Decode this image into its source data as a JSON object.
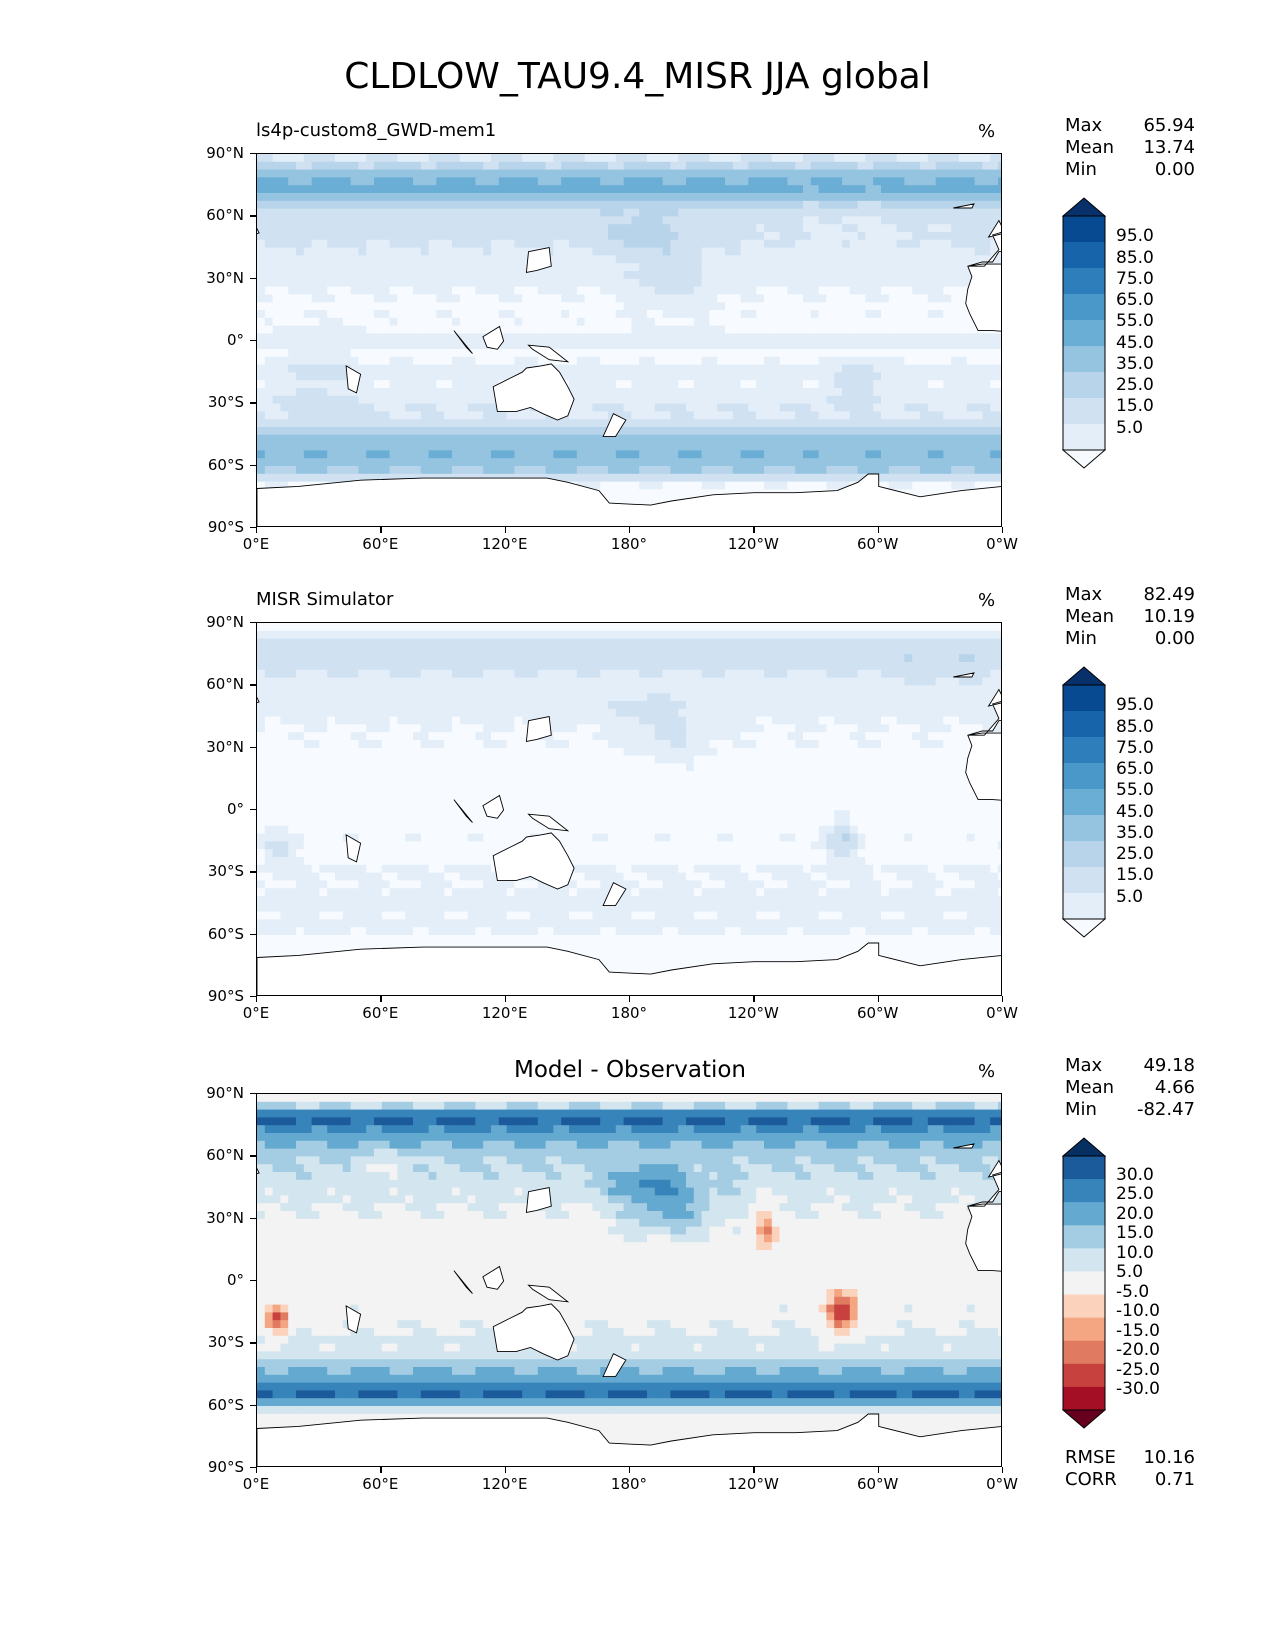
{
  "figure_title": "CLDLOW_TAU9.4_MISR JJA global",
  "chart_data": [
    {
      "type": "heatmap",
      "title": "ls4p-custom8_GWD-mem1",
      "units": "%",
      "stats": [
        {
          "label": "Max",
          "value": "65.94"
        },
        {
          "label": "Mean",
          "value": "13.74"
        },
        {
          "label": "Min",
          "value": "0.00"
        }
      ],
      "x_ticks": [
        "0°E",
        "60°E",
        "120°E",
        "180°",
        "120°W",
        "60°W",
        "0°W"
      ],
      "y_ticks": [
        "90°N",
        "60°N",
        "30°N",
        "0°",
        "30°S",
        "60°S",
        "90°S"
      ],
      "xlim": [
        0,
        360
      ],
      "ylim": [
        -90,
        90
      ],
      "colorbar": {
        "levels": [
          0,
          5,
          10,
          15,
          20,
          25,
          30,
          35,
          40,
          45,
          50,
          55,
          60,
          65,
          70,
          75,
          80,
          85,
          90,
          95,
          100
        ],
        "tick_labels": [
          "95.0",
          "85.0",
          "75.0",
          "65.0",
          "55.0",
          "45.0",
          "35.0",
          "25.0",
          "15.0",
          "5.0"
        ],
        "colormap": "Blues",
        "extend": "both"
      }
    },
    {
      "type": "heatmap",
      "title": "MISR Simulator",
      "units": "%",
      "stats": [
        {
          "label": "Max",
          "value": "82.49"
        },
        {
          "label": "Mean",
          "value": "10.19"
        },
        {
          "label": "Min",
          "value": "0.00"
        }
      ],
      "x_ticks": [
        "0°E",
        "60°E",
        "120°E",
        "180°",
        "120°W",
        "60°W",
        "0°W"
      ],
      "y_ticks": [
        "90°N",
        "60°N",
        "30°N",
        "0°",
        "30°S",
        "60°S",
        "90°S"
      ],
      "xlim": [
        0,
        360
      ],
      "ylim": [
        -90,
        90
      ],
      "colorbar": {
        "levels": [
          0,
          5,
          10,
          15,
          20,
          25,
          30,
          35,
          40,
          45,
          50,
          55,
          60,
          65,
          70,
          75,
          80,
          85,
          90,
          95,
          100
        ],
        "tick_labels": [
          "95.0",
          "85.0",
          "75.0",
          "65.0",
          "55.0",
          "45.0",
          "35.0",
          "25.0",
          "15.0",
          "5.0"
        ],
        "colormap": "Blues",
        "extend": "both"
      }
    },
    {
      "type": "heatmap",
      "title": "Model - Observation",
      "units": "%",
      "stats": [
        {
          "label": "Max",
          "value": "49.18"
        },
        {
          "label": "Mean",
          "value": "4.66"
        },
        {
          "label": "Min",
          "value": "-82.47"
        }
      ],
      "footer_stats": [
        {
          "label": "RMSE",
          "value": "10.16"
        },
        {
          "label": "CORR",
          "value": "0.71"
        }
      ],
      "x_ticks": [
        "0°E",
        "60°E",
        "120°E",
        "180°",
        "120°W",
        "60°W",
        "0°W"
      ],
      "y_ticks": [
        "90°N",
        "60°N",
        "30°N",
        "0°",
        "30°S",
        "60°S",
        "90°S"
      ],
      "xlim": [
        0,
        360
      ],
      "ylim": [
        -90,
        90
      ],
      "colorbar": {
        "levels": [
          -35,
          -30,
          -25,
          -20,
          -15,
          -10,
          -5,
          5,
          10,
          15,
          20,
          25,
          30,
          35
        ],
        "tick_labels": [
          "30.0",
          "25.0",
          "20.0",
          "15.0",
          "10.0",
          "5.0",
          "-5.0",
          "-10.0",
          "-15.0",
          "-20.0",
          "-25.0",
          "-30.0"
        ],
        "colormap": "RdBu",
        "extend": "both"
      }
    }
  ],
  "colors": {
    "blues": [
      "#f7fbff",
      "#e3eef9",
      "#d0e1f2",
      "#b7d4ea",
      "#94c4df",
      "#6aaed6",
      "#4a98c9",
      "#2e7ebc",
      "#1764ab",
      "#084a91",
      "#08306b"
    ],
    "diverging": [
      "#67001f",
      "#a50f26",
      "#c7423f",
      "#e07b62",
      "#f4a683",
      "#fbd3bd",
      "#f3f3f3",
      "#d3e6f0",
      "#a4cde3",
      "#64a9cf",
      "#3784bb",
      "#1b5a9b",
      "#053061"
    ],
    "land": "#ffffff",
    "coast": "#000000"
  }
}
